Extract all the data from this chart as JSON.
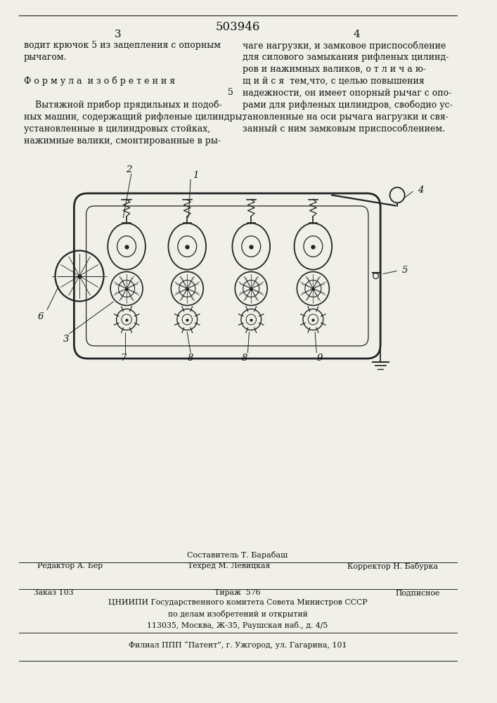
{
  "patent_number": "503946",
  "page_left": "3",
  "page_right": "4",
  "bg_color": "#f0efe8",
  "text_color": "#111111",
  "line_color": "#222222",
  "left_column_text": [
    "водит крючок 5 из зацепления с опорным",
    "рычагом.",
    "",
    "Ф о р м у л а  и з о б р е т е н и я",
    "",
    "    Вытяжной прибор прядильных и подоб-",
    "ных машин, содержащий рифленые цилиндры,",
    "установленные в цилиндровых стойках,",
    "нажимные валики, смонтированные в ры-"
  ],
  "right_column_text": [
    "чаге нагрузки, и замковое приспособление",
    "для силового замыкания рифленых цилинд-",
    "ров и нажимных валиков, о т л и ч а ю-",
    "щ и й с я  тем,что, с целью повышения",
    "надежности, он имеет опорный рычаг с опо-",
    "рами для рифленых цилиндров, свободно ус-",
    "тановленные на оси рычага нагрузки и свя-",
    "занный с ним замковым приспособлением."
  ],
  "number5_marker": "5",
  "footer_line1": "Составитель Т. Барабаш",
  "footer_line2_left": "Редактор А. Бер",
  "footer_line2_mid": "Техред М. Левицкая",
  "footer_line2_right": "Корректор Н. Бабурка",
  "footer_line3_left": "Заказ 103",
  "footer_line3_mid": "Тираж  576",
  "footer_line3_right": "Подписное",
  "footer_line4": "ЦНИИПИ Государственного комитета Совета Министров СССР",
  "footer_line5": "по делам изобретений и открытий",
  "footer_line6": "113035, Москва, Ж-35, Раушская наб., д. 4/5",
  "footer_line7": "Филиал ППП “Патент”, г. Ужгород, ул. Гагарина, 101"
}
